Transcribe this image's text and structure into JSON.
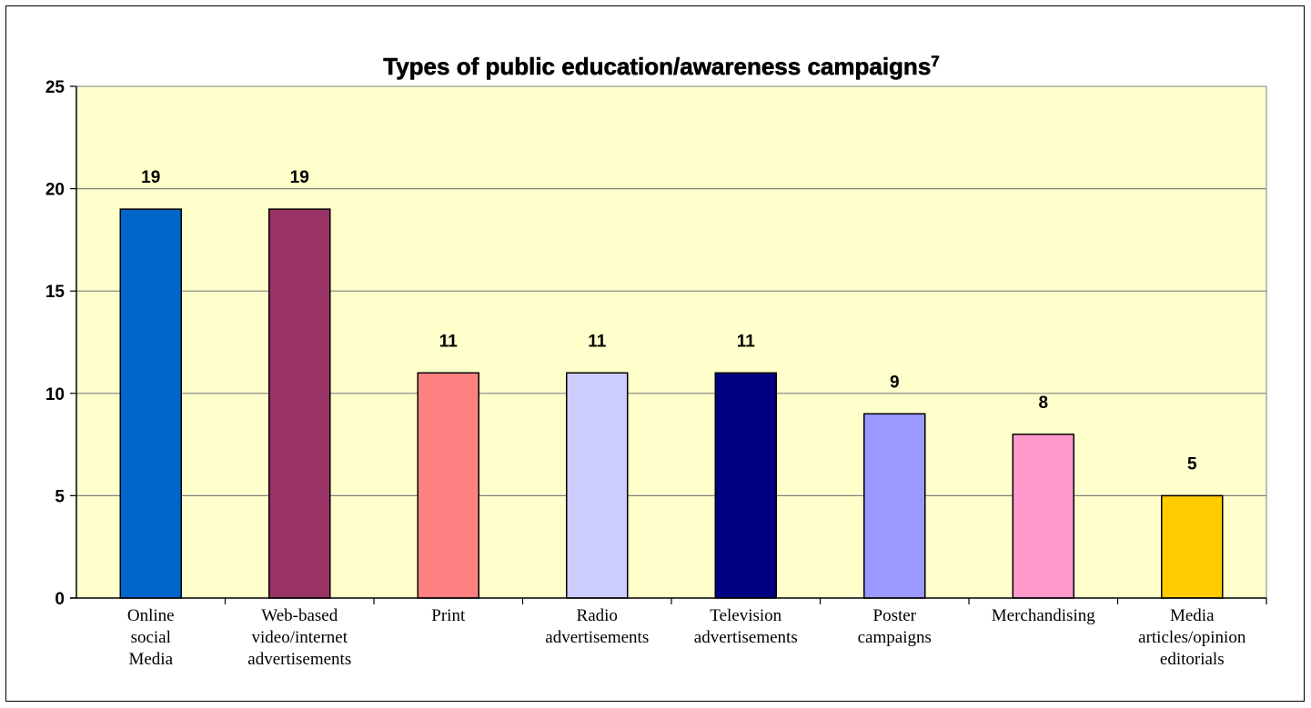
{
  "chart_data": {
    "type": "bar",
    "title": "Types of public education/awareness campaigns",
    "title_superscript": "7",
    "xlabel": "",
    "ylabel": "",
    "ylim": [
      0,
      25
    ],
    "yticks": [
      "0",
      "5",
      "10",
      "15",
      "20",
      "25"
    ],
    "grid": true,
    "legend": "none",
    "plot_background": "#FFFFCC",
    "gridline_color": "#808080",
    "categories": [
      [
        "Online",
        "social",
        "Media"
      ],
      [
        "Web-based",
        "video/internet",
        "advertisements"
      ],
      [
        "Print"
      ],
      [
        "Radio",
        "advertisements"
      ],
      [
        "Television",
        "advertisements"
      ],
      [
        "Poster",
        "campaigns"
      ],
      [
        "Merchandising"
      ],
      [
        "Media",
        "articles/opinion",
        "editorials"
      ]
    ],
    "values": [
      19,
      19,
      11,
      11,
      11,
      9,
      8,
      5
    ],
    "data_labels": [
      "19",
      "19",
      "11",
      "11",
      "11",
      "9",
      "8",
      "5"
    ],
    "bar_colors": [
      "#0066CC",
      "#993366",
      "#FF8080",
      "#CCCCFF",
      "#000080",
      "#9999FF",
      "#FF99CC",
      "#FFCC00"
    ]
  }
}
